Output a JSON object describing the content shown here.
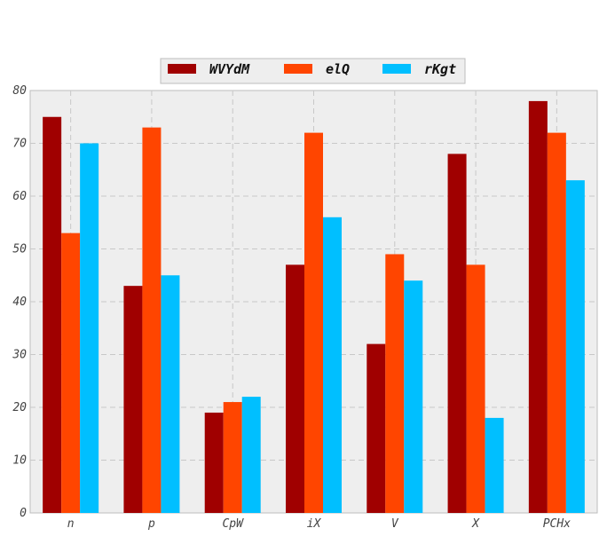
{
  "chart_data": {
    "type": "bar",
    "categories": [
      "n",
      "p",
      "CpW",
      "iX",
      "V",
      "X",
      "PCHx"
    ],
    "series": [
      {
        "name": "WVYdM",
        "color": "#a00000",
        "values": [
          75,
          43,
          19,
          47,
          32,
          68,
          78
        ]
      },
      {
        "name": "elQ",
        "color": "#ff4500",
        "values": [
          53,
          73,
          21,
          72,
          49,
          47,
          72
        ]
      },
      {
        "name": "rKgt",
        "color": "#00bfff",
        "values": [
          70,
          45,
          22,
          56,
          44,
          18,
          63
        ]
      }
    ],
    "title": "",
    "xlabel": "",
    "ylabel": "",
    "ylim": [
      0,
      80
    ],
    "yticks": [
      0,
      10,
      20,
      30,
      40,
      50,
      60,
      70,
      80
    ],
    "grid": true,
    "legend_position": "top-center",
    "plot_background": "#eeeeee"
  }
}
